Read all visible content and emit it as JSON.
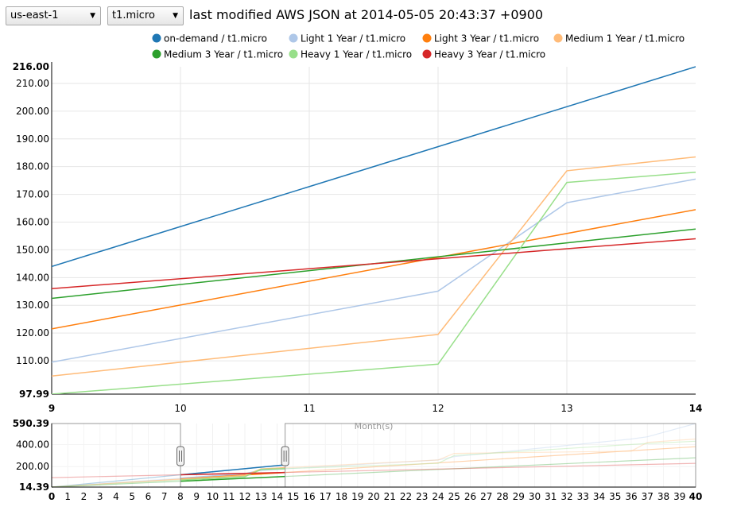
{
  "controls": {
    "region": "us-east-1",
    "instance": "t1.micro",
    "title": "last modified AWS JSON at 2014-05-05 20:43:37 +0900"
  },
  "chart_data": [
    {
      "type": "line",
      "role": "focus",
      "xlabel": "Month(s)",
      "ylabel": "",
      "xlim": [
        9,
        14
      ],
      "ylim": [
        97.99,
        216.0
      ],
      "x_ticks": [
        9,
        10,
        11,
        12,
        13,
        14
      ],
      "y_ticks": [
        "216.00",
        "210.00",
        "200.00",
        "190.00",
        "180.00",
        "170.00",
        "160.00",
        "150.00",
        "140.00",
        "130.00",
        "120.00",
        "110.00",
        "97.99"
      ],
      "grid": true,
      "legend_position": "top",
      "series": [
        {
          "name": "on-demand / t1.micro",
          "color": "#1f77b4",
          "x": [
            9,
            14
          ],
          "y": [
            144.0,
            216.0
          ]
        },
        {
          "name": "Light 1 Year / t1.micro",
          "color": "#aec7e8",
          "x": [
            9,
            12,
            13,
            14
          ],
          "y": [
            109.5,
            135.1,
            167.0,
            175.5
          ]
        },
        {
          "name": "Light 3 Year / t1.micro",
          "color": "#ff7f0e",
          "x": [
            9,
            14
          ],
          "y": [
            121.5,
            164.5
          ]
        },
        {
          "name": "Medium 1 Year / t1.micro",
          "color": "#ffbb78",
          "x": [
            9,
            12,
            13,
            14
          ],
          "y": [
            104.5,
            119.5,
            178.5,
            183.5
          ]
        },
        {
          "name": "Medium 3 Year / t1.micro",
          "color": "#2ca02c",
          "x": [
            9,
            14
          ],
          "y": [
            132.5,
            157.5
          ]
        },
        {
          "name": "Heavy 1 Year / t1.micro",
          "color": "#98df8a",
          "x": [
            9,
            12,
            13,
            14
          ],
          "y": [
            98.0,
            108.8,
            174.3,
            178.0
          ]
        },
        {
          "name": "Heavy 3 Year / t1.micro",
          "color": "#d62728",
          "x": [
            9,
            14
          ],
          "y": [
            136.0,
            154.0
          ]
        }
      ]
    },
    {
      "type": "line",
      "role": "context",
      "xlim": [
        0,
        40
      ],
      "ylim": [
        14.39,
        590.39
      ],
      "x_ticks": [
        0,
        1,
        2,
        3,
        4,
        5,
        6,
        7,
        8,
        9,
        10,
        11,
        12,
        13,
        14,
        15,
        16,
        17,
        18,
        19,
        20,
        21,
        22,
        23,
        24,
        25,
        26,
        27,
        28,
        29,
        30,
        31,
        32,
        33,
        34,
        35,
        36,
        37,
        38,
        39,
        40
      ],
      "y_ticks": [
        "590.39",
        "400.00",
        "200.00",
        "14.39"
      ],
      "brush": [
        8,
        14.5
      ],
      "series": [
        {
          "name": "on-demand / t1.micro",
          "color": "#1f77b4",
          "x": [
            0,
            14.5
          ],
          "y": [
            14.4,
            216.0
          ]
        },
        {
          "name": "Light 1 Year / t1.micro",
          "color": "#aec7e8",
          "x": [
            0,
            12,
            13,
            24,
            25,
            36,
            37,
            40
          ],
          "y": [
            14.4,
            135.1,
            167.0,
            260.0,
            290.0,
            450.0,
            470.0,
            590.4
          ]
        },
        {
          "name": "Light 3 Year / t1.micro",
          "color": "#ff7f0e",
          "x": [
            0,
            40
          ],
          "y": [
            14.4,
            380.0
          ]
        },
        {
          "name": "Medium 1 Year / t1.micro",
          "color": "#ffbb78",
          "x": [
            0,
            12,
            13,
            24,
            25,
            36,
            37,
            40
          ],
          "y": [
            14.4,
            119.5,
            178.5,
            260.0,
            320.0,
            340.0,
            420.0,
            450.0
          ]
        },
        {
          "name": "Medium 3 Year / t1.micro",
          "color": "#2ca02c",
          "x": [
            0,
            40
          ],
          "y": [
            14.4,
            280.0
          ]
        },
        {
          "name": "Heavy 1 Year / t1.micro",
          "color": "#98df8a",
          "x": [
            0,
            12,
            13,
            24,
            25,
            36,
            37,
            40
          ],
          "y": [
            14.4,
            108.8,
            174.3,
            230.0,
            300.0,
            400.0,
            410.0,
            430.0
          ]
        },
        {
          "name": "Heavy 3 Year / t1.micro",
          "color": "#d62728",
          "x": [
            0,
            40
          ],
          "y": [
            100.0,
            230.0
          ]
        }
      ]
    }
  ]
}
